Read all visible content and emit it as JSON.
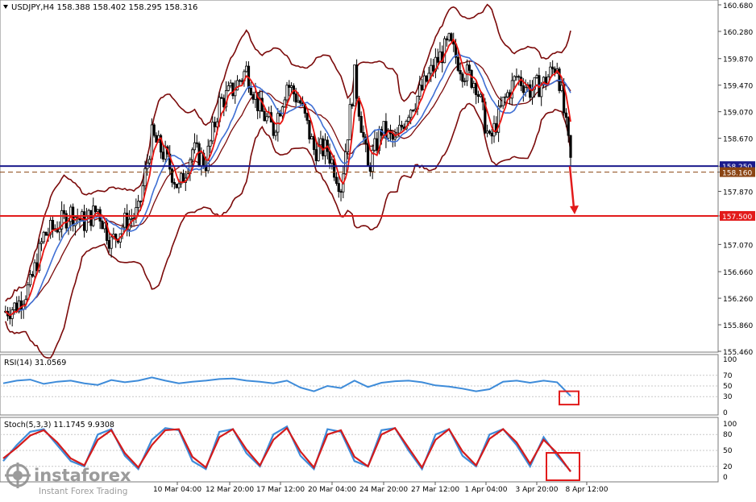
{
  "header": {
    "symbol_line": "USDJPY,H4  158.388 158.402 158.295 158.316"
  },
  "watermark": {
    "brand": "instaforex",
    "tagline": "Instant Forex Trading"
  },
  "colors": {
    "background": "#ffffff",
    "candles": "#000000",
    "bollinger": "#7b0a0a",
    "ma_fast": "#e8130f",
    "ma_slow": "#3f6fd4",
    "bid_line": "#1a1a8c",
    "ask_line": "#8b4513",
    "target_line": "#e21b1b",
    "rsi_line": "#3d8bd9",
    "stoch_main": "#3d8bd9",
    "stoch_signal": "#d41b1b",
    "annotation": "#e21b1b"
  },
  "chart_data": [
    {
      "type": "candlestick",
      "title": "USDJPY,H4",
      "ohlc_last": {
        "open": 158.388,
        "high": 158.402,
        "low": 158.295,
        "close": 158.316
      },
      "ylim": [
        155.46,
        160.68
      ],
      "y_ticks": [
        "160.680",
        "160.280",
        "159.870",
        "159.470",
        "159.070",
        "158.670",
        "158.250",
        "158.160",
        "157.870",
        "157.500",
        "157.070",
        "156.660",
        "156.260",
        "155.860",
        "155.460"
      ],
      "x_ticks": [
        "10 Mar 04:00",
        "12 Mar 20:00",
        "17 Mar 12:00",
        "20 Mar 04:00",
        "24 Mar 20:00",
        "27 Mar 12:00",
        "1 Apr 04:00",
        "3 Apr 20:00",
        "8 Apr 12:00"
      ],
      "horizontal_lines": [
        {
          "label": "158.250",
          "value": 158.25,
          "style": "solid"
        },
        {
          "label": "158.160",
          "value": 158.16,
          "style": "dashed"
        },
        {
          "label": "157.500",
          "value": 157.5,
          "style": "solid"
        }
      ],
      "indicators": [
        "Bollinger Bands",
        "Moving Average (fast)",
        "Moving Average (slow)"
      ],
      "series": [
        {
          "values": [
            156.05,
            156.15,
            156.45,
            157.2,
            157.35,
            157.55,
            157.4,
            157.6,
            157.1,
            157.4,
            157.55,
            158.7,
            158.4,
            157.9,
            158.5,
            158.3,
            159.2,
            159.4,
            159.7,
            159.1,
            158.8,
            159.5,
            159.2,
            158.5,
            158.5,
            157.95,
            159.6,
            158.2,
            158.8,
            158.6,
            159.1,
            159.4,
            159.8,
            160.1,
            159.7,
            159.5,
            158.6,
            159.2,
            159.6,
            159.4,
            159.5,
            159.8,
            158.32
          ]
        }
      ]
    },
    {
      "type": "line",
      "title": "RSI(14) 31.0569",
      "ylim": [
        0,
        100
      ],
      "y_ticks": [
        "100",
        "70",
        "50",
        "30",
        "0"
      ],
      "series": [
        {
          "name": "RSI(14)",
          "values": [
            55,
            60,
            62,
            54,
            58,
            60,
            55,
            52,
            61,
            57,
            60,
            66,
            60,
            55,
            58,
            60,
            63,
            64,
            60,
            58,
            55,
            60,
            47,
            40,
            50,
            46,
            60,
            48,
            56,
            59,
            60,
            57,
            51,
            49,
            45,
            40,
            44,
            58,
            60,
            56,
            60,
            57,
            31
          ]
        }
      ]
    },
    {
      "type": "line",
      "title": "Stoch(5,3,3) 11.1745 9.9308",
      "ylim": [
        0,
        100
      ],
      "y_ticks": [
        "100",
        "80",
        "50",
        "20",
        "0"
      ],
      "series": [
        {
          "name": "Stoch %K",
          "values": [
            30,
            60,
            85,
            90,
            60,
            30,
            20,
            80,
            90,
            40,
            15,
            70,
            92,
            88,
            30,
            15,
            85,
            90,
            45,
            20,
            80,
            95,
            40,
            15,
            90,
            85,
            30,
            20,
            88,
            92,
            50,
            15,
            80,
            90,
            40,
            20,
            80,
            90,
            60,
            20,
            75,
            40,
            11
          ]
        },
        {
          "name": "Stoch %D",
          "values": [
            35,
            55,
            78,
            88,
            65,
            35,
            22,
            70,
            88,
            45,
            18,
            60,
            88,
            90,
            38,
            18,
            75,
            90,
            52,
            22,
            70,
            92,
            48,
            18,
            80,
            88,
            38,
            20,
            80,
            92,
            55,
            18,
            70,
            90,
            48,
            22,
            72,
            90,
            65,
            25,
            70,
            45,
            10
          ]
        }
      ]
    }
  ]
}
